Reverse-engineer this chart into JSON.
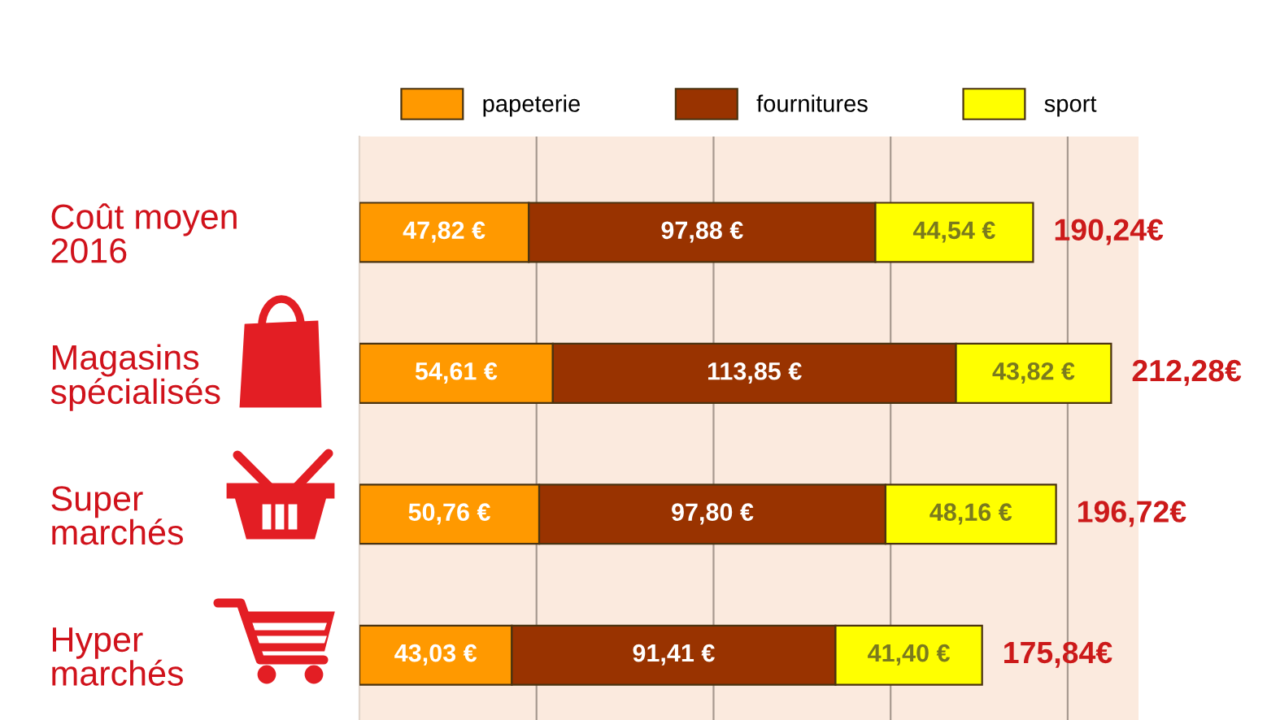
{
  "chart_data": {
    "type": "bar",
    "orientation": "horizontal",
    "stacked": true,
    "categories": [
      "Coût moyen\n2016",
      "Magasins\nspécialisés",
      "Super\nmarchés",
      "Hyper\nmarchés"
    ],
    "series": [
      {
        "name": "papeterie",
        "color": "#ff9900",
        "values": [
          47.82,
          54.61,
          50.76,
          43.03
        ],
        "value_labels": [
          "47,82 €",
          "54,61 €",
          "50,76 €",
          "43,03 €"
        ]
      },
      {
        "name": "fournitures",
        "color": "#993300",
        "values": [
          97.88,
          113.85,
          97.8,
          91.41
        ],
        "value_labels": [
          "97,88 €",
          "113,85 €",
          "97,80 €",
          "91,41 €"
        ]
      },
      {
        "name": "sport",
        "color": "#ffff00",
        "values": [
          44.54,
          43.82,
          48.16,
          41.4
        ],
        "value_labels": [
          "44,54 €",
          "43,82 €",
          "48,16 €",
          "41,40 €"
        ]
      }
    ],
    "totals": [
      "190,24€",
      "212,28€",
      "196,72€",
      "175,84€"
    ],
    "xlim": [
      0,
      220
    ],
    "xticks": [
      {
        "value": 50,
        "label": null
      },
      {
        "value": 100,
        "label": null
      },
      {
        "value": 150,
        "label": null
      },
      {
        "value": 200,
        "label": null
      }
    ],
    "grid": "x",
    "legend": "top",
    "tick_labels": "y"
  }
}
